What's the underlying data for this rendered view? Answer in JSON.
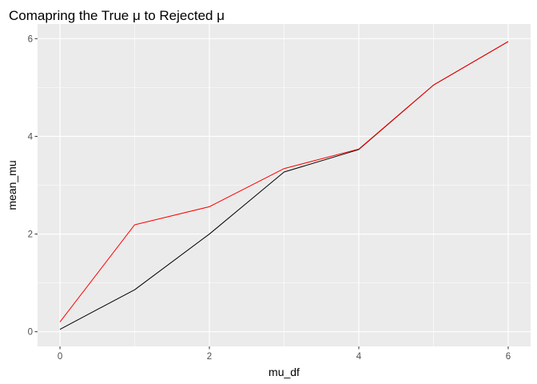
{
  "chart_data": {
    "type": "line",
    "title": "Comapring the True μ to Rejected μ",
    "xlabel": "mu_df",
    "ylabel": "mean_mu",
    "xlim": [
      -0.3,
      6.3
    ],
    "ylim": [
      -0.3,
      6.3
    ],
    "x_ticks": [
      0,
      2,
      4,
      6
    ],
    "x_tick_labels": [
      "0",
      "2",
      "4",
      "6"
    ],
    "y_ticks": [
      0,
      2,
      4,
      6
    ],
    "y_tick_labels": [
      "0",
      "2",
      "4",
      "6"
    ],
    "grid": true,
    "legend": "none",
    "series": [
      {
        "color": "#000000",
        "x": [
          0,
          1,
          2,
          3,
          4,
          5,
          6
        ],
        "y": [
          0.05,
          0.86,
          2.0,
          3.27,
          3.73,
          5.05,
          5.94
        ]
      },
      {
        "color": "#ff0000",
        "x": [
          0,
          1,
          2,
          3,
          4,
          5,
          6
        ],
        "y": [
          0.2,
          2.19,
          2.56,
          3.34,
          3.74,
          5.05,
          5.94
        ]
      }
    ]
  },
  "style": {
    "panel_background": "#ebebeb",
    "grid_major": "#ffffff",
    "axis_tick_color": "#333333"
  }
}
